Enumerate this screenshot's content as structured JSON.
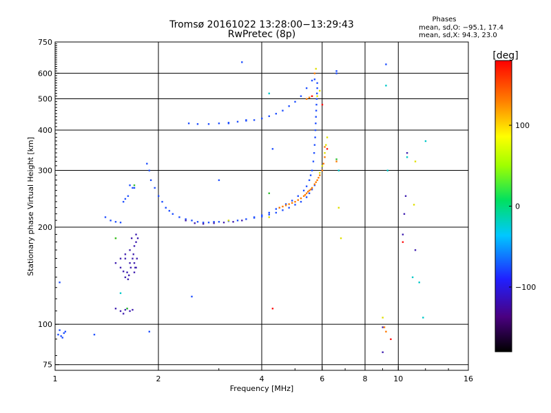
{
  "chart_data": {
    "type": "scatter",
    "title": "Tromsø 20161022 13:28:00−13:29:43",
    "subtitle": "RwPretec (8p)",
    "xlabel": "Frequency [MHz]",
    "ylabel": "Stationary phase Virtual Height [km]",
    "x_scale": "log",
    "y_scale": "log",
    "xlim": [
      1,
      16
    ],
    "ylim": [
      72,
      750
    ],
    "x_ticks": [
      1,
      2,
      4,
      6,
      8,
      10,
      16
    ],
    "x_tick_labels": [
      "1",
      "2",
      "4",
      "6",
      "8",
      "10",
      "16"
    ],
    "y_ticks": [
      75,
      100,
      200,
      300,
      400,
      500,
      600,
      750
    ],
    "y_tick_labels": [
      "75",
      "100",
      "200",
      "300",
      "400",
      "500",
      "600",
      "750"
    ],
    "grid": true,
    "phase_box": {
      "title": "Phases",
      "line_o": "mean, sd,O: −95.1, 17.4",
      "line_x": "mean, sd,X:  94.3, 23.0"
    },
    "colorbar": {
      "label": "[deg]",
      "range": [
        -180,
        180
      ],
      "ticks": [
        100,
        0,
        -100
      ],
      "tick_labels": [
        "100",
        "0",
        "−100"
      ]
    },
    "series": [
      {
        "color": "#2050ff",
        "points": [
          [
            1.02,
            93
          ],
          [
            1.04,
            92
          ],
          [
            1.06,
            94
          ],
          [
            1.03,
            96
          ],
          [
            1.07,
            95
          ],
          [
            1.05,
            91
          ],
          [
            1.3,
            93
          ],
          [
            1.03,
            135
          ],
          [
            1.4,
            215
          ],
          [
            1.45,
            210
          ],
          [
            1.5,
            208
          ],
          [
            1.55,
            207
          ],
          [
            1.65,
            270
          ],
          [
            1.63,
            250
          ],
          [
            1.6,
            245
          ],
          [
            1.58,
            240
          ],
          [
            1.68,
            265
          ],
          [
            1.7,
            265
          ],
          [
            1.85,
            315
          ],
          [
            1.88,
            300
          ],
          [
            1.9,
            280
          ],
          [
            1.95,
            265
          ],
          [
            2.0,
            250
          ],
          [
            2.05,
            240
          ],
          [
            2.1,
            230
          ],
          [
            2.15,
            225
          ],
          [
            2.2,
            220
          ],
          [
            2.3,
            215
          ],
          [
            2.4,
            212
          ],
          [
            2.5,
            210
          ],
          [
            2.6,
            208
          ],
          [
            2.7,
            207
          ],
          [
            2.8,
            207
          ],
          [
            2.9,
            208
          ],
          [
            3.0,
            208
          ],
          [
            3.2,
            209
          ],
          [
            3.4,
            210
          ],
          [
            3.6,
            212
          ],
          [
            3.8,
            214
          ],
          [
            4.0,
            216
          ],
          [
            4.2,
            219
          ],
          [
            4.4,
            222
          ],
          [
            4.6,
            226
          ],
          [
            4.8,
            230
          ],
          [
            5.0,
            235
          ],
          [
            5.2,
            240
          ],
          [
            5.4,
            248
          ],
          [
            5.5,
            255
          ],
          [
            5.6,
            262
          ],
          [
            5.7,
            270
          ],
          [
            3.8,
            215
          ],
          [
            4.0,
            218
          ],
          [
            4.2,
            222
          ],
          [
            4.4,
            228
          ],
          [
            4.5,
            230
          ],
          [
            4.7,
            236
          ],
          [
            4.9,
            242
          ],
          [
            5.1,
            250
          ],
          [
            5.3,
            260
          ],
          [
            5.4,
            268
          ],
          [
            5.5,
            280
          ],
          [
            5.55,
            290
          ],
          [
            5.6,
            300
          ],
          [
            5.65,
            320
          ],
          [
            5.68,
            340
          ],
          [
            5.7,
            360
          ],
          [
            5.72,
            380
          ],
          [
            5.73,
            400
          ],
          [
            5.74,
            420
          ],
          [
            5.75,
            440
          ],
          [
            5.76,
            460
          ],
          [
            5.77,
            480
          ],
          [
            5.78,
            500
          ],
          [
            5.79,
            520
          ],
          [
            5.8,
            540
          ],
          [
            5.8,
            560
          ],
          [
            5.7,
            575
          ],
          [
            2.45,
            420
          ],
          [
            2.6,
            418
          ],
          [
            2.8,
            418
          ],
          [
            3.0,
            420
          ],
          [
            3.2,
            422
          ],
          [
            3.4,
            425
          ],
          [
            3.6,
            428
          ],
          [
            3.8,
            430
          ],
          [
            4.0,
            435
          ],
          [
            4.2,
            442
          ],
          [
            4.4,
            450
          ],
          [
            4.6,
            460
          ],
          [
            4.8,
            475
          ],
          [
            5.0,
            490
          ],
          [
            5.2,
            510
          ],
          [
            5.4,
            540
          ],
          [
            5.6,
            570
          ],
          [
            3.5,
            650
          ],
          [
            3.2,
            420
          ],
          [
            3.6,
            430
          ],
          [
            4.3,
            350
          ],
          [
            3.0,
            280
          ],
          [
            6.6,
            600
          ],
          [
            6.6,
            610
          ],
          [
            9.2,
            640
          ],
          [
            2.5,
            122
          ],
          [
            1.88,
            95
          ]
        ]
      },
      {
        "color": "#4020b0",
        "points": [
          [
            1.5,
            112
          ],
          [
            1.55,
            110
          ],
          [
            1.6,
            111
          ],
          [
            1.65,
            110
          ],
          [
            1.58,
            108
          ],
          [
            1.62,
            112
          ],
          [
            1.68,
            111
          ],
          [
            1.5,
            155
          ],
          [
            1.55,
            150
          ],
          [
            1.6,
            160
          ],
          [
            1.62,
            145
          ],
          [
            1.65,
            170
          ],
          [
            1.68,
            160
          ],
          [
            1.7,
            175
          ],
          [
            1.72,
            190
          ],
          [
            1.72,
            180
          ],
          [
            1.7,
            155
          ],
          [
            1.66,
            150
          ],
          [
            1.6,
            140
          ],
          [
            1.63,
            138
          ],
          [
            1.72,
            150
          ],
          [
            1.73,
            160
          ],
          [
            1.74,
            185
          ],
          [
            1.58,
            146
          ],
          [
            1.65,
            155
          ],
          [
            1.7,
            145
          ],
          [
            1.67,
            185
          ],
          [
            1.69,
            165
          ],
          [
            1.71,
            150
          ],
          [
            1.64,
            142
          ],
          [
            2.4,
            210
          ],
          [
            2.55,
            206
          ],
          [
            2.7,
            205
          ],
          [
            2.9,
            206
          ],
          [
            3.1,
            207
          ],
          [
            3.3,
            208
          ],
          [
            3.5,
            210
          ],
          [
            9.0,
            98
          ],
          [
            10.3,
            190
          ],
          [
            10.4,
            220
          ],
          [
            10.5,
            250
          ],
          [
            10.6,
            340
          ],
          [
            11.2,
            170
          ],
          [
            9.0,
            82
          ],
          [
            1.55,
            160
          ],
          [
            1.6,
            165
          ]
        ]
      },
      {
        "color": "#ff7a00",
        "points": [
          [
            4.5,
            230
          ],
          [
            4.6,
            232
          ],
          [
            4.7,
            234
          ],
          [
            4.8,
            236
          ],
          [
            4.9,
            238
          ],
          [
            5.0,
            240
          ],
          [
            5.1,
            243
          ],
          [
            5.2,
            246
          ],
          [
            5.3,
            250
          ],
          [
            5.4,
            255
          ],
          [
            5.5,
            260
          ],
          [
            5.6,
            265
          ],
          [
            5.7,
            272
          ],
          [
            5.8,
            280
          ],
          [
            5.9,
            290
          ],
          [
            6.0,
            300
          ],
          [
            6.05,
            315
          ],
          [
            6.1,
            330
          ],
          [
            5.35,
            252
          ],
          [
            5.45,
            258
          ],
          [
            5.55,
            262
          ],
          [
            5.75,
            276
          ],
          [
            5.85,
            285
          ],
          [
            5.4,
            500
          ],
          [
            5.5,
            505
          ],
          [
            5.6,
            510
          ],
          [
            6.1,
            355
          ],
          [
            5.7,
            600
          ],
          [
            6.6,
            320
          ],
          [
            9.1,
            98
          ],
          [
            9.2,
            95
          ]
        ]
      },
      {
        "color": "#e0e000",
        "points": [
          [
            5.9,
            295
          ],
          [
            6.0,
            310
          ],
          [
            6.1,
            340
          ],
          [
            6.15,
            360
          ],
          [
            6.2,
            380
          ],
          [
            5.8,
            510
          ],
          [
            5.9,
            530
          ],
          [
            5.75,
            620
          ],
          [
            6.8,
            185
          ],
          [
            6.7,
            230
          ],
          [
            9.0,
            105
          ],
          [
            11.1,
            235
          ],
          [
            11.2,
            320
          ],
          [
            1.5,
            185
          ],
          [
            3.2,
            210
          ],
          [
            4.2,
            215
          ]
        ]
      },
      {
        "color": "#00c8c8",
        "points": [
          [
            1.55,
            125
          ],
          [
            6.7,
            300
          ],
          [
            11.0,
            140
          ],
          [
            11.5,
            135
          ],
          [
            9.2,
            550
          ],
          [
            4.2,
            520
          ],
          [
            10.6,
            330
          ],
          [
            12.0,
            370
          ],
          [
            11.8,
            105
          ],
          [
            9.3,
            300
          ]
        ]
      },
      {
        "color": "#30c030",
        "points": [
          [
            1.5,
            185
          ],
          [
            1.62,
            112
          ],
          [
            1.7,
            270
          ],
          [
            6.6,
            325
          ],
          [
            4.2,
            255
          ]
        ]
      },
      {
        "color": "#ff1010",
        "points": [
          [
            5.6,
            510
          ],
          [
            6.0,
            480
          ],
          [
            10.3,
            180
          ],
          [
            9.5,
            90
          ],
          [
            4.3,
            112
          ],
          [
            6.2,
            350
          ]
        ]
      }
    ]
  }
}
